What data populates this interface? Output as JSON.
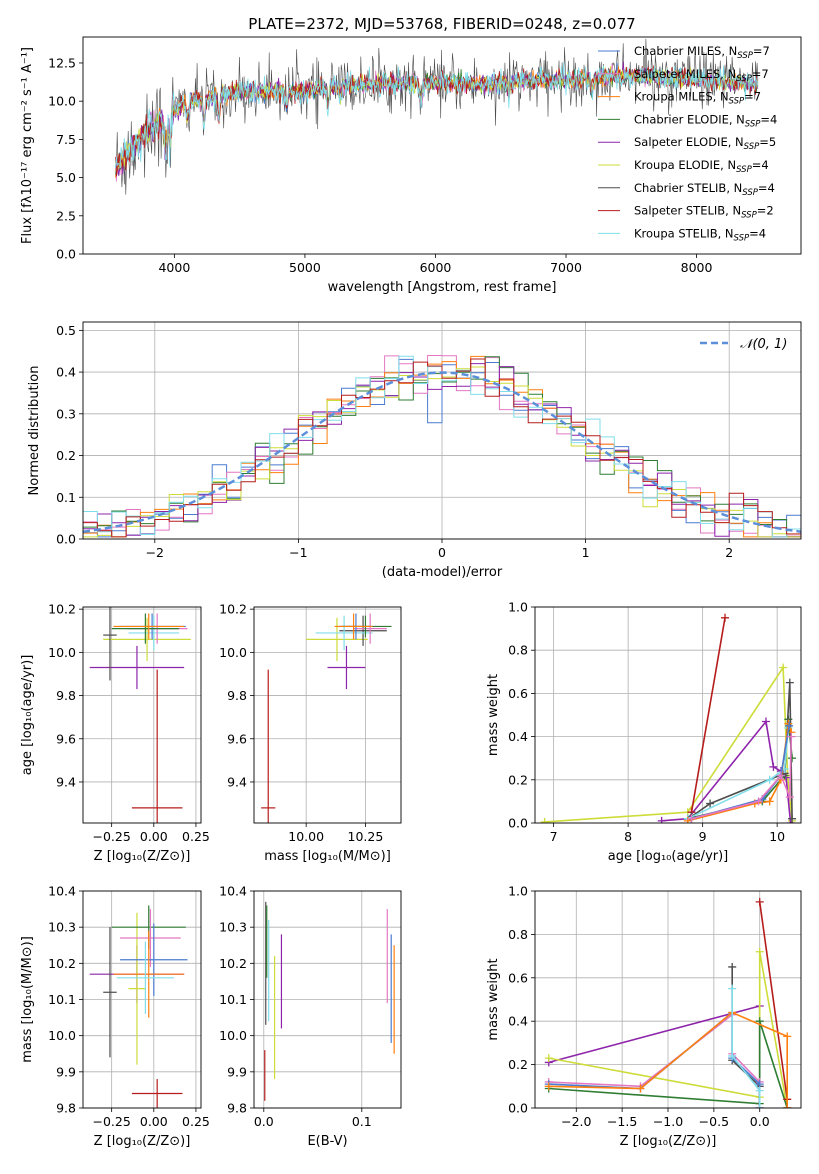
{
  "chart_data": [
    {
      "id": "spectrum",
      "type": "line",
      "title": "PLATE=2372, MJD=53768, FIBERID=0248, z=0.077",
      "xlabel": "wavelength [Angstrom, rest frame]",
      "ylabel": "Flux [f$_\\lambda$10$^{-17}$ erg cm$^{-2}$ s$^{-1}$ A$^{-1}$]",
      "ylabel_text": "Flux [fλ10⁻¹⁷ erg cm⁻² s⁻¹ A⁻¹]",
      "xlim": [
        3300,
        8800
      ],
      "ylim": [
        0,
        14.2
      ],
      "xticks": [
        4000,
        5000,
        6000,
        7000,
        8000
      ],
      "yticks": [
        0.0,
        2.5,
        5.0,
        7.5,
        10.0,
        12.5
      ],
      "grid": false,
      "legend_position": "top-right",
      "continuum": {
        "x": [
          3550,
          3650,
          3800,
          3900,
          4000,
          4100,
          4300,
          4500,
          4800,
          5000,
          5300,
          5600,
          6000,
          6300,
          6600,
          7000,
          7300,
          7600,
          8000,
          8400
        ],
        "y": [
          5.6,
          6.7,
          8.1,
          8.6,
          9.4,
          10.0,
          10.3,
          10.6,
          10.7,
          10.7,
          11.0,
          11.2,
          11.2,
          11.1,
          11.3,
          11.4,
          11.6,
          11.7,
          11.4,
          11.1
        ]
      },
      "absorption_dips": [
        [
          3934,
          2.0
        ],
        [
          3968,
          1.8
        ],
        [
          4101,
          1.2
        ],
        [
          4227,
          1.5
        ],
        [
          4340,
          1.5
        ],
        [
          4861,
          1.0
        ],
        [
          5175,
          1.2
        ],
        [
          5270,
          0.7
        ],
        [
          5890,
          1.3
        ],
        [
          6563,
          0.9
        ],
        [
          7200,
          0.8
        ],
        [
          8500,
          0.8
        ],
        [
          8540,
          1.0
        ],
        [
          8660,
          0.9
        ]
      ],
      "series": [
        {
          "name": "Chabrier MILES, N$_{SSP}$=7",
          "legend": "Chabrier MILES, N",
          "sub": "SSP",
          "suffix": "=7",
          "color": "#4a7bd0",
          "noise": 0.25
        },
        {
          "name": "Salpeter MILES, N$_{SSP}$=7",
          "legend": "Salpeter MILES, N",
          "sub": "SSP",
          "suffix": "=7",
          "color": "#e377c2",
          "noise": 0.25
        },
        {
          "name": "Kroupa MILES, N$_{SSP}$=7",
          "legend": "Kroupa MILES, N",
          "sub": "SSP",
          "suffix": "=7",
          "color": "#ff7f0e",
          "noise": 0.25
        },
        {
          "name": "Chabrier ELODIE, N$_{SSP}$=4",
          "legend": "Chabrier ELODIE, N",
          "sub": "SSP",
          "suffix": "=4",
          "color": "#2e7d32",
          "noise": 0.25
        },
        {
          "name": "Salpeter ELODIE, N$_{SSP}$=5",
          "legend": "Salpeter ELODIE, N",
          "sub": "SSP",
          "suffix": "=5",
          "color": "#8e24aa",
          "noise": 0.25
        },
        {
          "name": "Kroupa ELODIE, N$_{SSP}$=4",
          "legend": "Kroupa ELODIE, N",
          "sub": "SSP",
          "suffix": "=4",
          "color": "#cddc39",
          "noise": 0.25
        },
        {
          "name": "Chabrier STELIB, N$_{SSP}$=4",
          "legend": "Chabrier STELIB, N",
          "sub": "SSP",
          "suffix": "=4",
          "color": "#4d4d4d",
          "noise": 0.9
        },
        {
          "name": "Salpeter STELIB, N$_{SSP}$=2",
          "legend": "Salpeter STELIB, N",
          "sub": "SSP",
          "suffix": "=2",
          "color": "#b71c1c",
          "noise": 0.3
        },
        {
          "name": "Kroupa STELIB, N$_{SSP}$=4",
          "legend": "Kroupa STELIB, N",
          "sub": "SSP",
          "suffix": "=4",
          "color": "#80deea",
          "noise": 0.4
        }
      ]
    },
    {
      "id": "residuals",
      "type": "bar",
      "xlabel": "(data-model)/error",
      "ylabel": "Normed distribution",
      "xlim": [
        -2.5,
        2.5
      ],
      "ylim": [
        0,
        0.52
      ],
      "xticks": [
        -2,
        -1,
        0,
        1,
        2
      ],
      "yticks": [
        0.0,
        0.1,
        0.2,
        0.3,
        0.4,
        0.5
      ],
      "grid": true,
      "legend_position": "top-right",
      "bins": 50,
      "series_colors": [
        "#4a7bd0",
        "#e377c2",
        "#ff7f0e",
        "#2e7d32",
        "#8e24aa",
        "#cddc39",
        "#80deea",
        "#b71c1c"
      ],
      "reference": {
        "label": "𝒩(0, 1)",
        "color": "#5b8fd9",
        "mean": 0,
        "sigma": 1
      }
    },
    {
      "id": "age-vs-Z",
      "type": "scatter",
      "xlabel": "Z [log₁₀(Z/Z⊙)]",
      "ylabel": "age  [log₁₀(age/yr)]",
      "xlim": [
        -0.42,
        0.28
      ],
      "ylim": [
        9.21,
        10.21
      ],
      "xticks": [
        -0.25,
        0.0,
        0.25
      ],
      "xticklabels": [
        "−0.25",
        "0.00",
        "0.25"
      ],
      "yticks": [
        9.4,
        9.6,
        9.8,
        10.0,
        10.2
      ],
      "grid": true,
      "points": [
        {
          "x": 0.02,
          "y": 9.28,
          "xerr": 0.15,
          "yerr": 0.64,
          "color": "#b71c1c"
        },
        {
          "x": -0.1,
          "y": 9.93,
          "xerr": 0.28,
          "yerr": 0.1,
          "color": "#8e24aa"
        },
        {
          "x": -0.04,
          "y": 10.06,
          "xerr": 0.26,
          "yerr": 0.1,
          "color": "#cddc39"
        },
        {
          "x": -0.26,
          "y": 10.08,
          "xerr": 0.04,
          "yerr": 0.21,
          "color": "#4d4d4d"
        },
        {
          "x": 0.0,
          "y": 10.09,
          "xerr": 0.15,
          "yerr": 0.08,
          "color": "#80deea"
        },
        {
          "x": 0.02,
          "y": 10.11,
          "xerr": 0.18,
          "yerr": 0.07,
          "color": "#e377c2"
        },
        {
          "x": -0.01,
          "y": 10.12,
          "xerr": 0.2,
          "yerr": 0.06,
          "color": "#4a7bd0"
        },
        {
          "x": -0.05,
          "y": 10.11,
          "xerr": 0.2,
          "yerr": 0.07,
          "color": "#2e7d32"
        },
        {
          "x": -0.03,
          "y": 10.12,
          "xerr": 0.21,
          "yerr": 0.06,
          "color": "#ff7f0e"
        }
      ]
    },
    {
      "id": "age-vs-mass",
      "type": "scatter",
      "xlabel": "mass [log₁₀(M/M⊙)]",
      "ylabel": "",
      "xlim": [
        9.78,
        10.4
      ],
      "ylim": [
        9.21,
        10.21
      ],
      "xticks": [
        10.0,
        10.25
      ],
      "xticklabels": [
        "10.00",
        "10.25"
      ],
      "yticks": [
        9.4,
        9.6,
        9.8,
        10.0,
        10.2
      ],
      "grid": true,
      "points": [
        {
          "x": 9.84,
          "y": 9.28,
          "xerr": 0.03,
          "yerr": 0.64,
          "color": "#b71c1c"
        },
        {
          "x": 10.17,
          "y": 9.93,
          "xerr": 0.08,
          "yerr": 0.1,
          "color": "#8e24aa"
        },
        {
          "x": 10.13,
          "y": 10.06,
          "xerr": 0.13,
          "yerr": 0.1,
          "color": "#cddc39"
        },
        {
          "x": 10.24,
          "y": 10.1,
          "xerr": 0.1,
          "yerr": 0.07,
          "color": "#4d4d4d"
        },
        {
          "x": 10.16,
          "y": 10.09,
          "xerr": 0.12,
          "yerr": 0.08,
          "color": "#80deea"
        },
        {
          "x": 10.27,
          "y": 10.11,
          "xerr": 0.07,
          "yerr": 0.07,
          "color": "#e377c2"
        },
        {
          "x": 10.21,
          "y": 10.12,
          "xerr": 0.06,
          "yerr": 0.06,
          "color": "#4a7bd0"
        },
        {
          "x": 10.25,
          "y": 10.12,
          "xerr": 0.11,
          "yerr": 0.05,
          "color": "#2e7d32"
        },
        {
          "x": 10.2,
          "y": 10.12,
          "xerr": 0.08,
          "yerr": 0.06,
          "color": "#ff7f0e"
        }
      ]
    },
    {
      "id": "weight-vs-age",
      "type": "line",
      "xlabel": "age  [log₁₀(age/yr)]",
      "ylabel": "mass weight",
      "xlim": [
        6.75,
        10.32
      ],
      "ylim": [
        0,
        1.0
      ],
      "xticks": [
        7,
        8,
        9,
        10
      ],
      "yticks": [
        0.0,
        0.2,
        0.4,
        0.6,
        0.8,
        1.0
      ],
      "grid": true,
      "series": [
        {
          "color": "#cddc39",
          "x": [
            6.88,
            8.8,
            10.08,
            10.14,
            10.2
          ],
          "y": [
            0.005,
            0.05,
            0.72,
            0.22,
            0.01
          ]
        },
        {
          "color": "#8e24aa",
          "x": [
            8.45,
            8.8,
            9.85,
            9.95,
            10.05,
            10.12,
            10.18
          ],
          "y": [
            0.01,
            0.02,
            0.47,
            0.26,
            0.24,
            0.21,
            0.0
          ]
        },
        {
          "color": "#b71c1c",
          "x": [
            8.85,
            9.3
          ],
          "y": [
            0.05,
            0.95
          ]
        },
        {
          "color": "#2e7d32",
          "x": [
            8.8,
            9.8,
            10.1,
            10.15,
            10.2
          ],
          "y": [
            0.02,
            0.1,
            0.22,
            0.48,
            0.3
          ]
        },
        {
          "color": "#4d4d4d",
          "x": [
            8.85,
            9.1,
            10.1,
            10.17,
            10.2
          ],
          "y": [
            0.03,
            0.09,
            0.23,
            0.65,
            0.02
          ]
        },
        {
          "color": "#80deea",
          "x": [
            8.8,
            9.9,
            10.1,
            10.15
          ],
          "y": [
            0.02,
            0.2,
            0.25,
            0.44
          ]
        },
        {
          "color": "#ff7f0e",
          "x": [
            8.8,
            9.7,
            9.9,
            10.05,
            10.15,
            10.19
          ],
          "y": [
            0.01,
            0.09,
            0.1,
            0.2,
            0.46,
            0.42
          ]
        },
        {
          "color": "#4a7bd0",
          "x": [
            8.85,
            9.8,
            10.05,
            10.16
          ],
          "y": [
            0.02,
            0.11,
            0.22,
            0.45
          ]
        },
        {
          "color": "#e377c2",
          "x": [
            8.85,
            9.75,
            10.05,
            10.17,
            10.19
          ],
          "y": [
            0.02,
            0.1,
            0.22,
            0.12,
            0.4
          ]
        }
      ]
    },
    {
      "id": "mass-vs-Z",
      "type": "scatter",
      "xlabel": "Z [log₁₀(Z/Z⊙)]",
      "ylabel": "mass [log₁₀(M/M⊙)]",
      "xlim": [
        -0.42,
        0.28
      ],
      "ylim": [
        9.8,
        10.4
      ],
      "xticks": [
        -0.25,
        0.0,
        0.25
      ],
      "xticklabels": [
        "−0.25",
        "0.00",
        "0.25"
      ],
      "yticks": [
        9.8,
        9.9,
        10.0,
        10.1,
        10.2,
        10.3,
        10.4
      ],
      "grid": true,
      "points": [
        {
          "x": 0.02,
          "y": 9.84,
          "xerr": 0.15,
          "yerr": 0.04,
          "color": "#b71c1c"
        },
        {
          "x": -0.1,
          "y": 10.17,
          "xerr": 0.28,
          "yerr": 0.08,
          "color": "#8e24aa"
        },
        {
          "x": -0.1,
          "y": 10.13,
          "xerr": 0.05,
          "yerr": 0.21,
          "color": "#cddc39"
        },
        {
          "x": -0.26,
          "y": 10.12,
          "xerr": 0.04,
          "yerr": 0.18,
          "color": "#4d4d4d"
        },
        {
          "x": -0.03,
          "y": 10.3,
          "xerr": 0.22,
          "yerr": 0.06,
          "color": "#2e7d32"
        },
        {
          "x": -0.02,
          "y": 10.27,
          "xerr": 0.18,
          "yerr": 0.08,
          "color": "#e377c2"
        },
        {
          "x": 0.0,
          "y": 10.21,
          "xerr": 0.2,
          "yerr": 0.1,
          "color": "#4a7bd0"
        },
        {
          "x": -0.03,
          "y": 10.17,
          "xerr": 0.21,
          "yerr": 0.12,
          "color": "#ff7f0e"
        },
        {
          "x": -0.05,
          "y": 10.16,
          "xerr": 0.17,
          "yerr": 0.1,
          "color": "#80deea"
        }
      ]
    },
    {
      "id": "mass-vs-ebv",
      "type": "scatter",
      "xlabel": "E(B-V)",
      "ylabel": "",
      "xlim": [
        -0.01,
        0.14
      ],
      "ylim": [
        9.8,
        10.4
      ],
      "xticks": [
        0.0,
        0.1
      ],
      "xticklabels": [
        "0.0",
        "0.1"
      ],
      "yticks": [
        9.8,
        9.9,
        10.0,
        10.1,
        10.2,
        10.3,
        10.4
      ],
      "grid": true,
      "points": [
        {
          "x": 0.001,
          "y": 9.89,
          "xerr": 0,
          "yerr": 0.07,
          "color": "#b71c1c"
        },
        {
          "x": 0.018,
          "y": 10.15,
          "xerr": 0,
          "yerr": 0.13,
          "color": "#8e24aa"
        },
        {
          "x": 0.011,
          "y": 10.05,
          "xerr": 0,
          "yerr": 0.17,
          "color": "#cddc39"
        },
        {
          "x": 0.002,
          "y": 10.2,
          "xerr": 0,
          "yerr": 0.17,
          "color": "#4d4d4d"
        },
        {
          "x": 0.005,
          "y": 10.18,
          "xerr": 0,
          "yerr": 0.14,
          "color": "#80deea"
        },
        {
          "x": 0.126,
          "y": 10.22,
          "xerr": 0,
          "yerr": 0.13,
          "color": "#e377c2"
        },
        {
          "x": 0.13,
          "y": 10.13,
          "xerr": 0,
          "yerr": 0.15,
          "color": "#4a7bd0"
        },
        {
          "x": 0.133,
          "y": 10.1,
          "xerr": 0,
          "yerr": 0.15,
          "color": "#ff7f0e"
        },
        {
          "x": 0.003,
          "y": 10.26,
          "xerr": 0,
          "yerr": 0.1,
          "color": "#2e7d32"
        }
      ]
    },
    {
      "id": "weight-vs-Z",
      "type": "line",
      "xlabel": "Z [log₁₀(Z/Z⊙)]",
      "ylabel": "mass weight",
      "xlim": [
        -2.45,
        0.45
      ],
      "ylim": [
        0,
        1.0
      ],
      "xticks": [
        -2.0,
        -1.5,
        -1.0,
        -0.5,
        0.0
      ],
      "xticklabels": [
        "−2.0",
        "−1.5",
        "−1.0",
        "−0.5",
        "0.0"
      ],
      "yticks": [
        0.0,
        0.2,
        0.4,
        0.6,
        0.8,
        1.0
      ],
      "grid": true,
      "series": [
        {
          "color": "#8e24aa",
          "x": [
            -2.3,
            0.0,
            0.0
          ],
          "y": [
            0.21,
            0.47,
            0.0
          ]
        },
        {
          "color": "#cddc39",
          "x": [
            -2.3,
            0.0,
            0.0,
            0.3
          ],
          "y": [
            0.23,
            0.05,
            0.72,
            0.0
          ]
        },
        {
          "color": "#2e7d32",
          "x": [
            -2.3,
            0.0,
            0.0,
            0.3
          ],
          "y": [
            0.09,
            0.02,
            0.4,
            0.0
          ]
        },
        {
          "color": "#4d4d4d",
          "x": [
            -0.3,
            -0.3,
            0.0,
            0.0
          ],
          "y": [
            0.65,
            0.22,
            0.1,
            0.0
          ]
        },
        {
          "color": "#b71c1c",
          "x": [
            0.0,
            0.3,
            0.3
          ],
          "y": [
            0.95,
            0.04,
            0.0
          ]
        },
        {
          "color": "#e377c2",
          "x": [
            -2.3,
            -1.3,
            -0.3,
            -0.3,
            0.0,
            0.0
          ],
          "y": [
            0.12,
            0.1,
            0.43,
            0.25,
            0.12,
            0.0
          ]
        },
        {
          "color": "#4a7bd0",
          "x": [
            -2.3,
            -1.3,
            -0.3,
            -0.3,
            0.0,
            0.0
          ],
          "y": [
            0.11,
            0.09,
            0.44,
            0.23,
            0.11,
            0.0
          ]
        },
        {
          "color": "#ff7f0e",
          "x": [
            -2.3,
            -1.3,
            -0.3,
            0.3,
            0.3
          ],
          "y": [
            0.1,
            0.09,
            0.44,
            0.33,
            0.0
          ]
        },
        {
          "color": "#80deea",
          "x": [
            -0.3,
            -0.3,
            0.0,
            0.0
          ],
          "y": [
            0.55,
            0.24,
            0.08,
            0.0
          ]
        }
      ]
    }
  ]
}
